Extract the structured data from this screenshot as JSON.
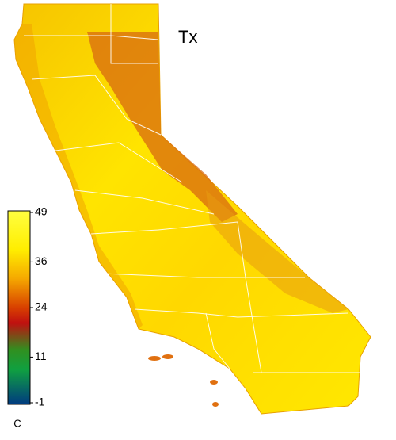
{
  "map": {
    "title": "Tx",
    "colorbar": {
      "unit": "C",
      "range": [
        -1,
        49
      ],
      "ticks": [
        49,
        36,
        24,
        11,
        -1
      ]
    }
  }
}
